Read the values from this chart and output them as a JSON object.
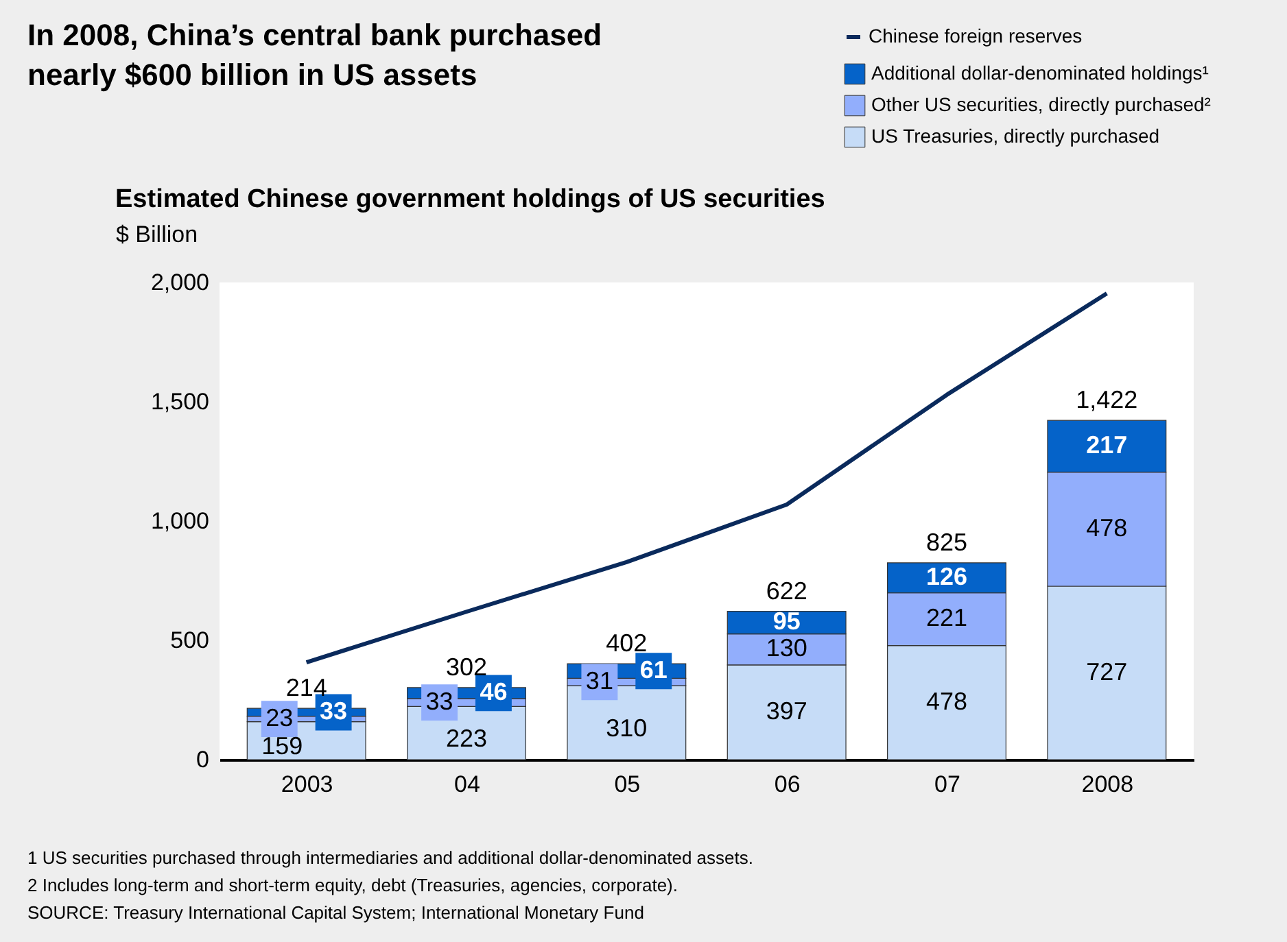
{
  "chart_data": {
    "type": "bar",
    "stacked": true,
    "title": "In 2008, China’s central bank purchased nearly $600 billion in US assets",
    "subtitle": "Estimated Chinese government holdings of US securities",
    "ylabel": "$ Billion",
    "categories": [
      "2003",
      "04",
      "05",
      "06",
      "07",
      "2008"
    ],
    "series": [
      {
        "name": "US Treasuries, directly purchased",
        "color": "#c6dcf7",
        "values": [
          159,
          223,
          310,
          397,
          478,
          727
        ],
        "value_labels": [
          "159",
          "223",
          "310",
          "397",
          "478",
          "727"
        ]
      },
      {
        "name": "Other US securities, directly purchased²",
        "color": "#92aefc",
        "values": [
          23,
          33,
          31,
          130,
          221,
          478
        ],
        "value_labels": [
          "23",
          "33",
          "31",
          "130",
          "221",
          "478"
        ]
      },
      {
        "name": "Additional dollar-denominated holdings¹",
        "color": "#0563c9",
        "values": [
          33,
          46,
          61,
          95,
          126,
          217
        ],
        "value_labels": [
          "33",
          "46",
          "61",
          "95",
          "126",
          "217"
        ]
      },
      {
        "name": "Chinese foreign reserves",
        "type": "line",
        "color": "#0a2a5c",
        "values": [
          408,
          620,
          828,
          1069,
          1529,
          1954
        ]
      }
    ],
    "totals": [
      "214",
      "302",
      "402",
      "622",
      "825",
      "1,422"
    ],
    "ylim": [
      0,
      2000
    ],
    "yticks": [
      {
        "value": 0,
        "label": "0"
      },
      {
        "value": 500,
        "label": "500"
      },
      {
        "value": 1000,
        "label": "1,000"
      },
      {
        "value": 1500,
        "label": "1,500"
      },
      {
        "value": 2000,
        "label": "2,000"
      }
    ],
    "grid": false,
    "legend": "top right",
    "annotations": [
      "1 US securities purchased through intermediaries and additional dollar-denominated assets.",
      "2 Includes long-term and short-term equity, debt (Treasuries, agencies, corporate).",
      "SOURCE: Treasury International Capital System; International Monetary Fund"
    ]
  }
}
